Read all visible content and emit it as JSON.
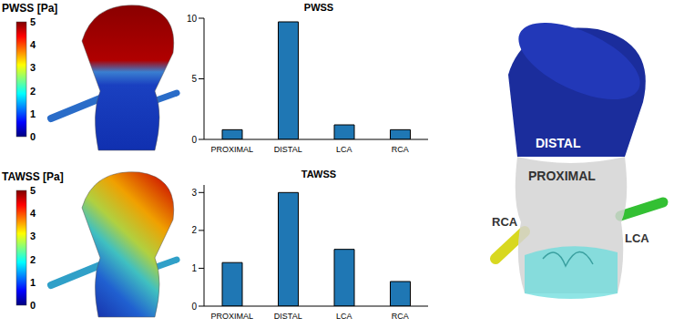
{
  "chart_data": [
    {
      "type": "bar",
      "title": "PWSS",
      "categories": [
        "PROXIMAL",
        "DISTAL",
        "LCA",
        "RCA"
      ],
      "values": [
        0.8,
        9.7,
        1.2,
        0.8
      ],
      "color": "#1f77b4",
      "ylim": [
        0,
        10
      ],
      "yticks": [
        0,
        5,
        10
      ],
      "grid": false
    },
    {
      "type": "bar",
      "title": "TAWSS",
      "categories": [
        "PROXIMAL",
        "DISTAL",
        "LCA",
        "RCA"
      ],
      "values": [
        1.15,
        3.0,
        1.5,
        0.65
      ],
      "color": "#1f77b4",
      "ylim": [
        0,
        3.2
      ],
      "yticks": [
        0,
        1,
        2,
        3
      ],
      "grid": false
    }
  ],
  "colorbars": [
    {
      "label": "PWSS [Pa]",
      "range": [
        0,
        5
      ],
      "ticks": [
        0,
        1,
        2,
        3,
        4,
        5
      ]
    },
    {
      "label": "TAWSS [Pa]",
      "range": [
        0,
        5
      ],
      "ticks": [
        0,
        1,
        2,
        3,
        4,
        5
      ]
    }
  ],
  "diagram": {
    "labels": {
      "distal": "DISTAL",
      "proximal": "PROXIMAL",
      "rca": "RCA",
      "lca": "LCA"
    }
  }
}
